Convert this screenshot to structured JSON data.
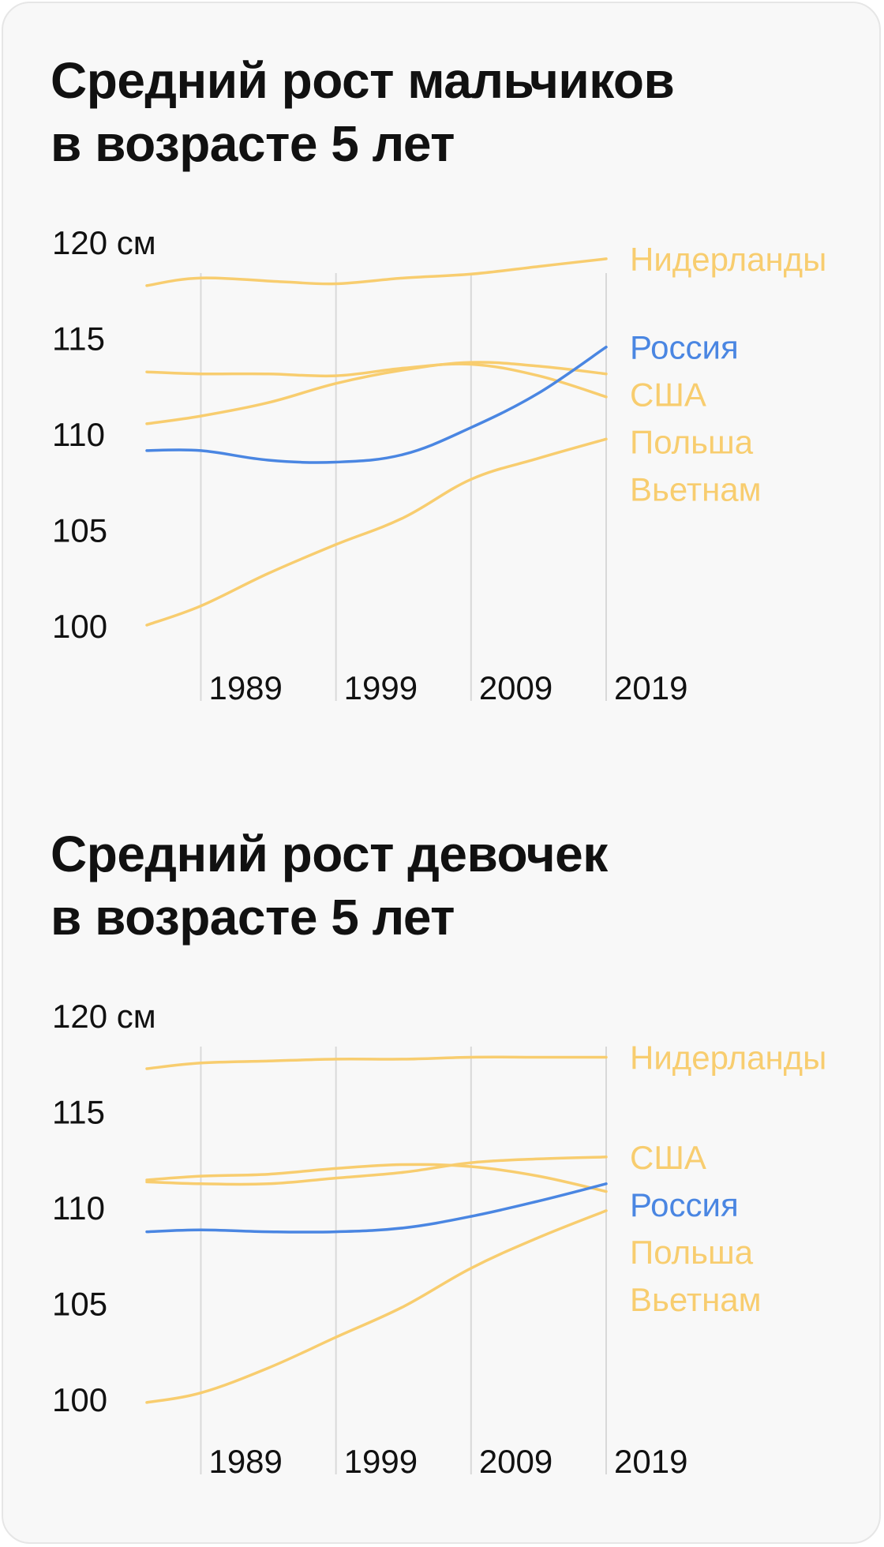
{
  "colors": {
    "background": "#f8f8f8",
    "highlight": "#4a86e2",
    "other": "#f8cd6f",
    "grid": "#d9d9d9",
    "text": "#111111"
  },
  "chart_data": [
    {
      "type": "line",
      "title_lines": [
        "Средний рост мальчиков",
        "в возрасте 5 лет"
      ],
      "ylabel": "см",
      "y_ticks": [
        {
          "value": 120,
          "label": "120 см"
        },
        {
          "value": 115,
          "label": "115"
        },
        {
          "value": 110,
          "label": "110"
        },
        {
          "value": 105,
          "label": "105"
        },
        {
          "value": 100,
          "label": "100"
        }
      ],
      "x_ticks": [
        1989,
        1999,
        2009,
        2019
      ],
      "xlim": [
        1985,
        2019
      ],
      "ylim": [
        100,
        120
      ],
      "series": [
        {
          "name": "Нидерланды",
          "highlight": false,
          "x": [
            1985,
            1989,
            1995,
            1999,
            2004,
            2009,
            2014,
            2019
          ],
          "values": [
            117.7,
            118.1,
            117.9,
            117.8,
            118.1,
            118.3,
            118.7,
            119.1
          ]
        },
        {
          "name": "Россия",
          "highlight": true,
          "x": [
            1985,
            1989,
            1994,
            1999,
            2004,
            2009,
            2014,
            2019
          ],
          "values": [
            109.1,
            109.1,
            108.6,
            108.5,
            108.9,
            110.3,
            112.1,
            114.5
          ]
        },
        {
          "name": "США",
          "highlight": false,
          "x": [
            1985,
            1989,
            1994,
            1999,
            2004,
            2009,
            2014,
            2019
          ],
          "values": [
            110.5,
            110.9,
            111.6,
            112.6,
            113.3,
            113.7,
            113.5,
            113.1
          ]
        },
        {
          "name": "Польша",
          "highlight": false,
          "x": [
            1985,
            1989,
            1994,
            1999,
            2004,
            2009,
            2014,
            2019
          ],
          "values": [
            113.2,
            113.1,
            113.1,
            113.0,
            113.4,
            113.6,
            113.0,
            111.9
          ]
        },
        {
          "name": "Вьетнам",
          "highlight": false,
          "x": [
            1985,
            1989,
            1994,
            1999,
            2004,
            2009,
            2014,
            2019
          ],
          "values": [
            100.0,
            101.0,
            102.7,
            104.2,
            105.6,
            107.6,
            108.7,
            109.7
          ]
        }
      ]
    },
    {
      "type": "line",
      "title_lines": [
        "Средний рост девочек",
        "в возрасте 5 лет"
      ],
      "ylabel": "см",
      "y_ticks": [
        {
          "value": 120,
          "label": "120 см"
        },
        {
          "value": 115,
          "label": "115"
        },
        {
          "value": 110,
          "label": "110"
        },
        {
          "value": 105,
          "label": "105"
        },
        {
          "value": 100,
          "label": "100"
        }
      ],
      "x_ticks": [
        1989,
        1999,
        2009,
        2019
      ],
      "xlim": [
        1985,
        2019
      ],
      "ylim": [
        100,
        120
      ],
      "series": [
        {
          "name": "Нидерланды",
          "highlight": false,
          "x": [
            1985,
            1989,
            1994,
            1999,
            2004,
            2009,
            2014,
            2019
          ],
          "values": [
            117.2,
            117.5,
            117.6,
            117.7,
            117.7,
            117.8,
            117.8,
            117.8
          ]
        },
        {
          "name": "США",
          "highlight": false,
          "x": [
            1985,
            1989,
            1994,
            1999,
            2004,
            2009,
            2014,
            2019
          ],
          "values": [
            111.3,
            111.2,
            111.2,
            111.5,
            111.8,
            112.3,
            112.5,
            112.6
          ]
        },
        {
          "name": "Россия",
          "highlight": true,
          "x": [
            1985,
            1989,
            1994,
            1999,
            2004,
            2009,
            2014,
            2019
          ],
          "values": [
            108.7,
            108.8,
            108.7,
            108.7,
            108.9,
            109.5,
            110.3,
            111.2
          ]
        },
        {
          "name": "Польша",
          "highlight": false,
          "x": [
            1985,
            1989,
            1994,
            1999,
            2004,
            2009,
            2014,
            2019
          ],
          "values": [
            111.4,
            111.6,
            111.7,
            112.0,
            112.2,
            112.1,
            111.6,
            110.8
          ]
        },
        {
          "name": "Вьетнам",
          "highlight": false,
          "x": [
            1985,
            1989,
            1994,
            1999,
            2004,
            2009,
            2014,
            2019
          ],
          "values": [
            99.8,
            100.3,
            101.6,
            103.2,
            104.8,
            106.8,
            108.4,
            109.8
          ]
        }
      ]
    }
  ]
}
